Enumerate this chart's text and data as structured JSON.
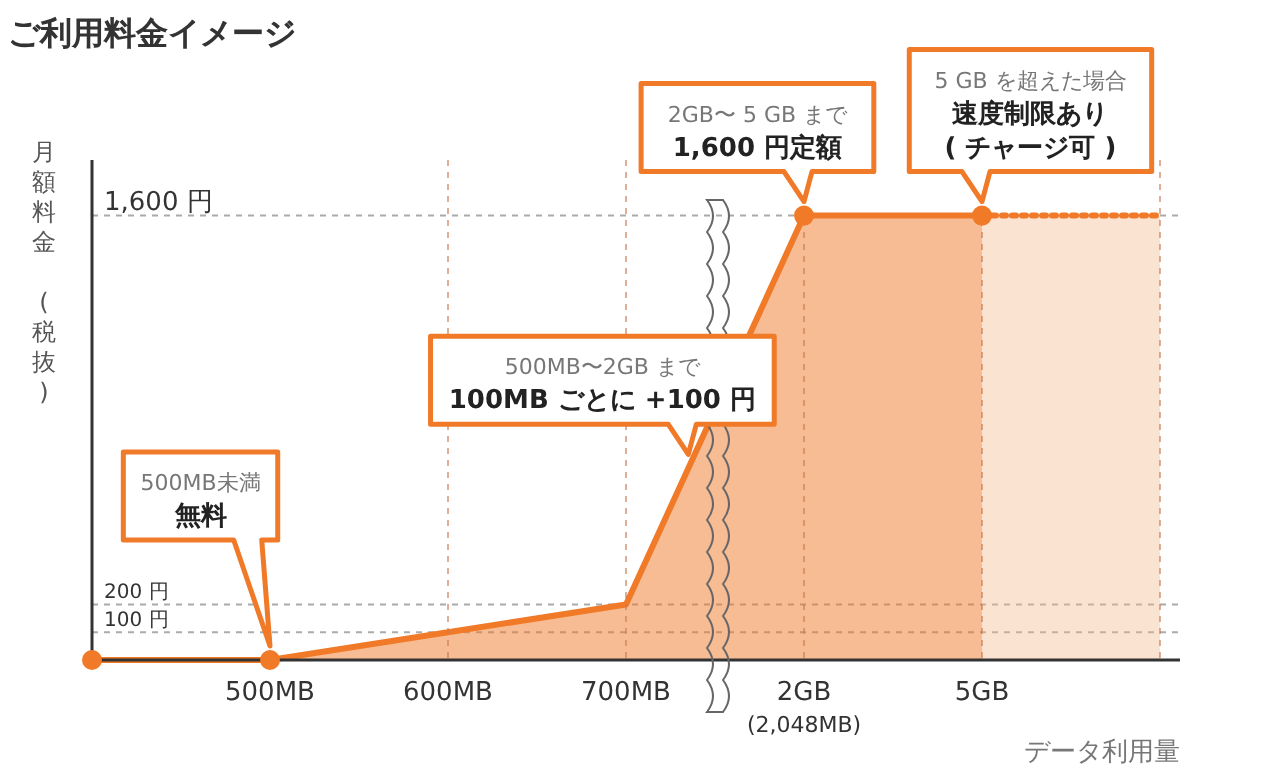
{
  "chart_data": {
    "type": "line",
    "title": "ご利用料金イメージ",
    "xlabel": "データ利用量",
    "ylabel": "月額料金 (税抜)",
    "categories": [
      null,
      "500MB",
      "600MB",
      "700MB",
      "2GB",
      "5GB",
      null
    ],
    "series": [
      {
        "type": "area",
        "color": "#f07a28",
        "values": [
          0,
          0,
          100,
          200,
          1600,
          1600,
          null
        ],
        "line_style": "solid"
      },
      {
        "type": "area",
        "color": "#f5b98c",
        "values": [
          null,
          null,
          null,
          null,
          null,
          1600,
          1600
        ],
        "line_style": "dotted"
      },
      {
        "type": "scatter",
        "color": "#f07a28",
        "marker": "circle",
        "values": [
          0,
          0,
          null,
          null,
          1600,
          1600,
          null
        ]
      }
    ],
    "ylim": [
      0,
      1800
    ],
    "yticks": [
      {
        "value": 100,
        "label": "100 円"
      },
      {
        "value": 200,
        "label": "200 円"
      },
      {
        "value": 1600,
        "label": "1,600 円"
      }
    ],
    "grid": true,
    "annotations": [
      "500MB未満",
      "無料",
      "500MB〜2GB まで",
      "100MB ごとに +100 円",
      "2GB〜 5 GB まで",
      "1,600 円定額",
      "5 GB を超えた場合",
      "速度制限あり",
      "( チャージ可 )",
      "(2,048MB)"
    ]
  }
}
